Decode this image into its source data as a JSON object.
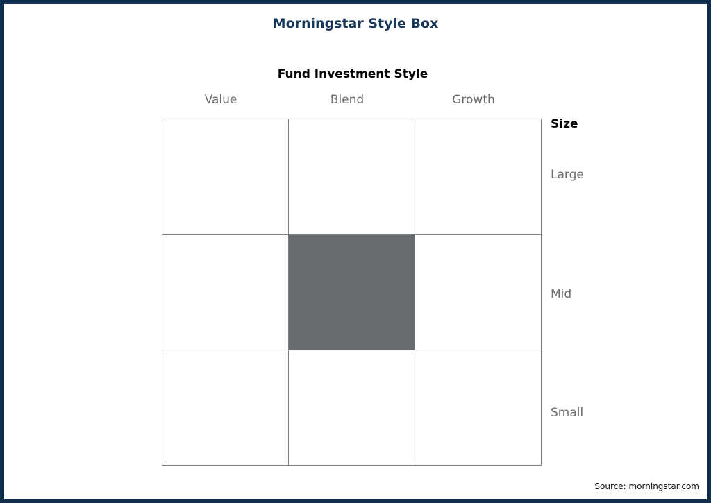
{
  "title": "Morningstar Style Box",
  "subtitle": "Fund Investment Style",
  "columns": [
    "Value",
    "Blend",
    "Growth"
  ],
  "size_header": "Size",
  "rows": [
    "Large",
    "Mid",
    "Small"
  ],
  "grid": {
    "active_cell": {
      "row": "Mid",
      "column": "Blend"
    }
  },
  "colors": {
    "frame": "#0e2f4e",
    "title": "#17385b",
    "active_fill": "#676d6f",
    "grid_line": "#7a7c7e",
    "label_gray": "#6b6e70"
  },
  "source": "Source: morningstar.com"
}
